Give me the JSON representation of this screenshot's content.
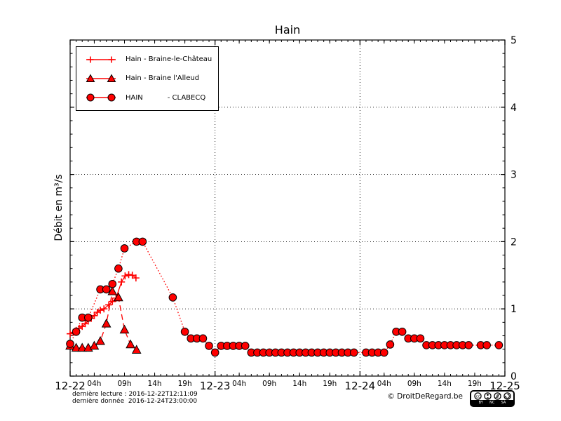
{
  "title": "Hain",
  "ylabel": "Débit en m³/s",
  "footer": {
    "line1": "dernière lecture : 2016-12-22T12:11:09",
    "line2": "dernière donnée  2016-12-24T23:00:00",
    "copyright": "© DroitDeRegard.be",
    "license": {
      "by": "BY",
      "nc": "NC",
      "sa": "SA",
      "cc": "cc"
    }
  },
  "colors": {
    "series": "#ff0000",
    "marker_edge": "#000000",
    "grid": "#000000",
    "background": "#ffffff"
  },
  "chart_data": {
    "type": "line",
    "title": "Hain",
    "xlabel": "",
    "ylabel": "Débit en m³/s",
    "x_unit": "hours since 2016-12-22 00:00",
    "xlim": [
      0,
      72
    ],
    "ylim": [
      0,
      5
    ],
    "grid": {
      "h": [
        1,
        2,
        3,
        4
      ],
      "v": [
        24,
        48
      ]
    },
    "legend_position": "upper left",
    "x_day_ticks": [
      {
        "x": 0,
        "label": "12-22"
      },
      {
        "x": 24,
        "label": "12-23"
      },
      {
        "x": 48,
        "label": "12-24"
      },
      {
        "x": 72,
        "label": "12-25"
      }
    ],
    "x_hour_ticks": [
      {
        "x": 4,
        "label": "04h"
      },
      {
        "x": 9,
        "label": "09h"
      },
      {
        "x": 14,
        "label": "14h"
      },
      {
        "x": 19,
        "label": "19h"
      },
      {
        "x": 28,
        "label": "04h"
      },
      {
        "x": 33,
        "label": "09h"
      },
      {
        "x": 38,
        "label": "14h"
      },
      {
        "x": 43,
        "label": "19h"
      },
      {
        "x": 52,
        "label": "04h"
      },
      {
        "x": 57,
        "label": "09h"
      },
      {
        "x": 62,
        "label": "14h"
      },
      {
        "x": 67,
        "label": "19h"
      }
    ],
    "y_ticks": [
      {
        "v": 0,
        "label": "0"
      },
      {
        "v": 1,
        "label": "1"
      },
      {
        "v": 2,
        "label": "2"
      },
      {
        "v": 3,
        "label": "3"
      },
      {
        "v": 4,
        "label": "4"
      },
      {
        "v": 5,
        "label": "5"
      }
    ],
    "series": [
      {
        "name": "Hain - Braine-le-Château",
        "marker": "plus",
        "linestyle": "solid",
        "color": "#ff0000",
        "points": [
          [
            0,
            0.63
          ],
          [
            0.5,
            0.65
          ],
          [
            1,
            0.68
          ],
          [
            1.5,
            0.71
          ],
          [
            2,
            0.74
          ],
          [
            2.5,
            0.78
          ],
          [
            3,
            0.82
          ],
          [
            3.5,
            0.86
          ],
          [
            4,
            0.9
          ],
          [
            4.5,
            0.95
          ],
          [
            5,
            0.98
          ],
          [
            5.6,
            1.0
          ],
          [
            6.4,
            1.06
          ],
          [
            7,
            1.11
          ],
          [
            7.6,
            1.16
          ],
          [
            8.5,
            1.4
          ],
          [
            9.1,
            1.49
          ],
          [
            9.7,
            1.51
          ],
          [
            10.3,
            1.5
          ],
          [
            10.9,
            1.46
          ]
        ]
      },
      {
        "name": "Hain - Braine l'Alleud",
        "marker": "triangle",
        "linestyle": "dashed",
        "color": "#ff0000",
        "points": [
          [
            0,
            0.45
          ],
          [
            1,
            0.42
          ],
          [
            2,
            0.42
          ],
          [
            3,
            0.42
          ],
          [
            4,
            0.45
          ],
          [
            5,
            0.52
          ],
          [
            6,
            0.78
          ],
          [
            7,
            1.26
          ],
          [
            8,
            1.17
          ],
          [
            9,
            0.69
          ],
          [
            10,
            0.47
          ],
          [
            11,
            0.39
          ]
        ]
      },
      {
        "name": "HAIN           - CLABECQ",
        "marker": "circle",
        "linestyle": "dotted",
        "color": "#ff0000",
        "points": [
          [
            0,
            0.48
          ],
          [
            1,
            0.66
          ],
          [
            2,
            0.87
          ],
          [
            3,
            0.87
          ],
          [
            5,
            1.29
          ],
          [
            6,
            1.29
          ],
          [
            7,
            1.37
          ],
          [
            8,
            1.6
          ],
          [
            9,
            1.9
          ],
          [
            11,
            2.0
          ],
          [
            12,
            2.0
          ],
          [
            17,
            1.17
          ],
          [
            19,
            0.66
          ],
          [
            20,
            0.56
          ],
          [
            21,
            0.56
          ],
          [
            22,
            0.56
          ],
          [
            23,
            0.45
          ],
          [
            24,
            0.35
          ],
          [
            25,
            0.45
          ],
          [
            26,
            0.45
          ],
          [
            27,
            0.45
          ],
          [
            28,
            0.45
          ],
          [
            29,
            0.45
          ],
          [
            30,
            0.35
          ],
          [
            31,
            0.35
          ],
          [
            32,
            0.35
          ],
          [
            33,
            0.35
          ],
          [
            34,
            0.35
          ],
          [
            35,
            0.35
          ],
          [
            36,
            0.35
          ],
          [
            37,
            0.35
          ],
          [
            38,
            0.35
          ],
          [
            39,
            0.35
          ],
          [
            40,
            0.35
          ],
          [
            41,
            0.35
          ],
          [
            42,
            0.35
          ],
          [
            43,
            0.35
          ],
          [
            44,
            0.35
          ],
          [
            45,
            0.35
          ],
          [
            46,
            0.35
          ],
          [
            47,
            0.35
          ],
          [
            49,
            0.35
          ],
          [
            50,
            0.35
          ],
          [
            51,
            0.35
          ],
          [
            52,
            0.35
          ],
          [
            53,
            0.47
          ],
          [
            54,
            0.66
          ],
          [
            55,
            0.66
          ],
          [
            56,
            0.56
          ],
          [
            57,
            0.56
          ],
          [
            58,
            0.56
          ],
          [
            59,
            0.46
          ],
          [
            60,
            0.46
          ],
          [
            61,
            0.46
          ],
          [
            62,
            0.46
          ],
          [
            63,
            0.46
          ],
          [
            64,
            0.46
          ],
          [
            65,
            0.46
          ],
          [
            66,
            0.46
          ],
          [
            68,
            0.46
          ],
          [
            69,
            0.46
          ],
          [
            71,
            0.46
          ]
        ]
      }
    ]
  }
}
